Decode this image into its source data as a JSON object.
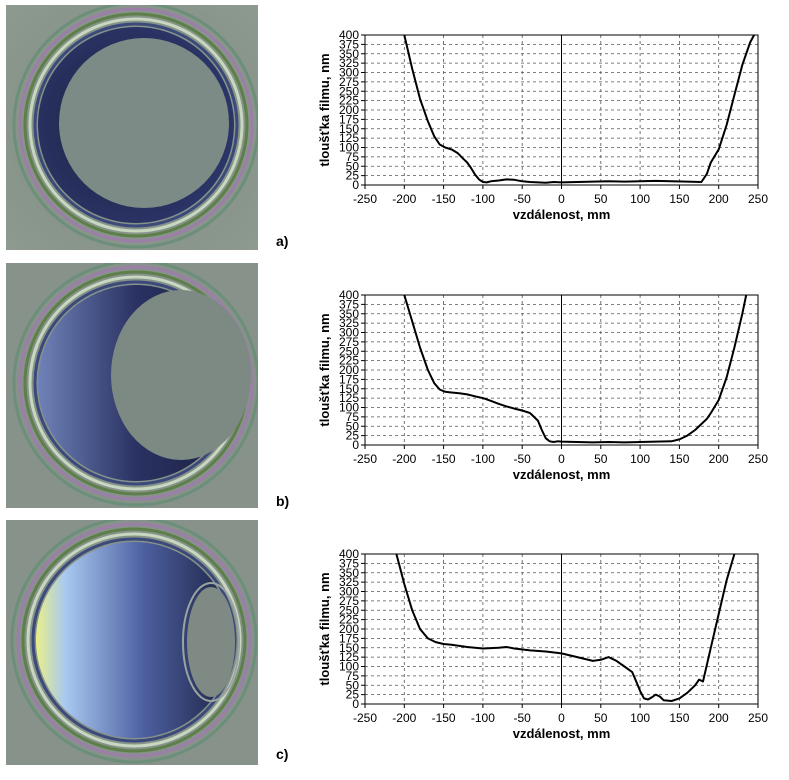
{
  "chart_data": [
    {
      "type": "line",
      "panel": "a)",
      "xlabel": "vzdálenost, mm",
      "ylabel": "tloušťka filmu, nm",
      "xlim": [
        -250,
        250
      ],
      "ylim": [
        0,
        400
      ],
      "xticks": [
        -250,
        -200,
        -150,
        -100,
        -50,
        0,
        50,
        100,
        150,
        200,
        250
      ],
      "yticks": [
        0,
        25,
        50,
        75,
        100,
        125,
        150,
        175,
        200,
        225,
        250,
        275,
        300,
        325,
        350,
        375,
        400
      ],
      "grid": true,
      "x": [
        -200,
        -190,
        -180,
        -170,
        -162,
        -155,
        -148,
        -140,
        -132,
        -125,
        -120,
        -115,
        -110,
        -105,
        -100,
        -95,
        -90,
        -80,
        -70,
        -60,
        -50,
        -40,
        -30,
        -20,
        -10,
        0,
        20,
        40,
        60,
        80,
        100,
        120,
        140,
        160,
        178,
        185,
        190,
        200,
        210,
        220,
        230,
        240,
        245
      ],
      "y": [
        400,
        310,
        230,
        170,
        130,
        108,
        100,
        95,
        85,
        70,
        60,
        45,
        28,
        15,
        8,
        7,
        10,
        12,
        15,
        14,
        10,
        8,
        7,
        6,
        8,
        7,
        8,
        9,
        10,
        9,
        10,
        11,
        10,
        9,
        8,
        30,
        60,
        95,
        160,
        240,
        320,
        380,
        400
      ]
    },
    {
      "type": "line",
      "panel": "b)",
      "xlabel": "vzdálenost, mm",
      "ylabel": "tloušťka filmu, nm",
      "xlim": [
        -250,
        250
      ],
      "ylim": [
        0,
        400
      ],
      "xticks": [
        -250,
        -200,
        -150,
        -100,
        -50,
        0,
        50,
        100,
        150,
        200,
        250
      ],
      "yticks": [
        0,
        25,
        50,
        75,
        100,
        125,
        150,
        175,
        200,
        225,
        250,
        275,
        300,
        325,
        350,
        375,
        400
      ],
      "grid": true,
      "x": [
        -200,
        -190,
        -180,
        -170,
        -162,
        -155,
        -148,
        -140,
        -130,
        -120,
        -110,
        -100,
        -90,
        -80,
        -70,
        -60,
        -50,
        -40,
        -35,
        -30,
        -25,
        -20,
        -15,
        -10,
        -5,
        0,
        20,
        40,
        60,
        80,
        100,
        120,
        140,
        150,
        160,
        170,
        180,
        185,
        190,
        200,
        210,
        220,
        230,
        235
      ],
      "y": [
        400,
        330,
        260,
        200,
        165,
        148,
        142,
        140,
        138,
        135,
        130,
        125,
        118,
        110,
        103,
        97,
        92,
        85,
        75,
        65,
        40,
        18,
        10,
        8,
        10,
        9,
        8,
        7,
        8,
        7,
        8,
        9,
        10,
        15,
        25,
        40,
        60,
        70,
        85,
        120,
        180,
        260,
        350,
        400
      ]
    },
    {
      "type": "line",
      "panel": "c)",
      "xlabel": "vzdálenost, mm",
      "ylabel": "tloušťka filmu, nm",
      "xlim": [
        -250,
        250
      ],
      "ylim": [
        0,
        400
      ],
      "xticks": [
        -250,
        -200,
        -150,
        -100,
        -50,
        0,
        50,
        100,
        150,
        200,
        250
      ],
      "yticks": [
        0,
        25,
        50,
        75,
        100,
        125,
        150,
        175,
        200,
        225,
        250,
        275,
        300,
        325,
        350,
        375,
        400
      ],
      "grid": true,
      "x": [
        -210,
        -200,
        -190,
        -180,
        -170,
        -160,
        -150,
        -140,
        -120,
        -100,
        -80,
        -70,
        -60,
        -40,
        -20,
        0,
        20,
        40,
        50,
        60,
        70,
        80,
        90,
        95,
        100,
        105,
        110,
        115,
        120,
        125,
        130,
        140,
        150,
        160,
        170,
        175,
        180,
        190,
        200,
        210,
        220
      ],
      "y": [
        400,
        320,
        250,
        200,
        175,
        165,
        160,
        158,
        152,
        148,
        150,
        152,
        148,
        143,
        140,
        135,
        125,
        115,
        118,
        125,
        115,
        100,
        85,
        60,
        35,
        15,
        12,
        18,
        25,
        20,
        10,
        8,
        15,
        30,
        50,
        65,
        60,
        150,
        240,
        330,
        400
      ]
    }
  ]
}
